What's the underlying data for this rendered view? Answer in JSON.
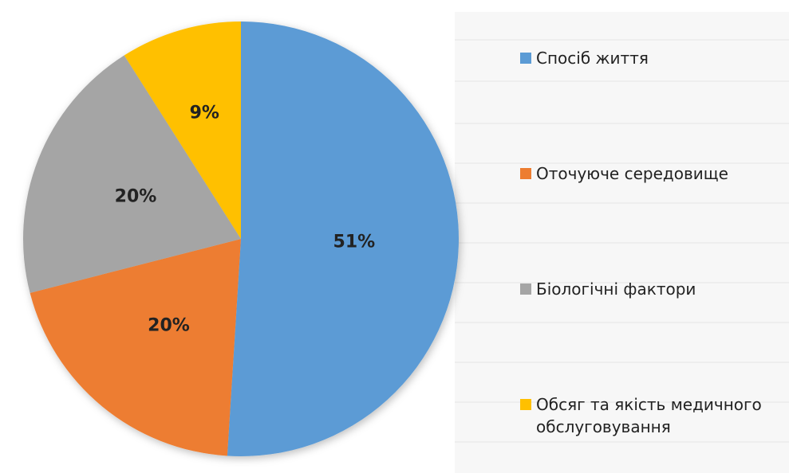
{
  "chart_data": {
    "type": "pie",
    "categories": [
      "Спосіб життя",
      "Оточуюче середовище",
      "Біологічні фактори",
      "Обсяг та якість медичного обслуговування"
    ],
    "values": [
      51,
      20,
      20,
      9
    ],
    "value_labels": [
      "51%",
      "20%",
      "20%",
      "9%"
    ],
    "colors": [
      "#5b9bd5",
      "#ed7d31",
      "#a5a5a5",
      "#ffc000"
    ],
    "legend": "right"
  }
}
